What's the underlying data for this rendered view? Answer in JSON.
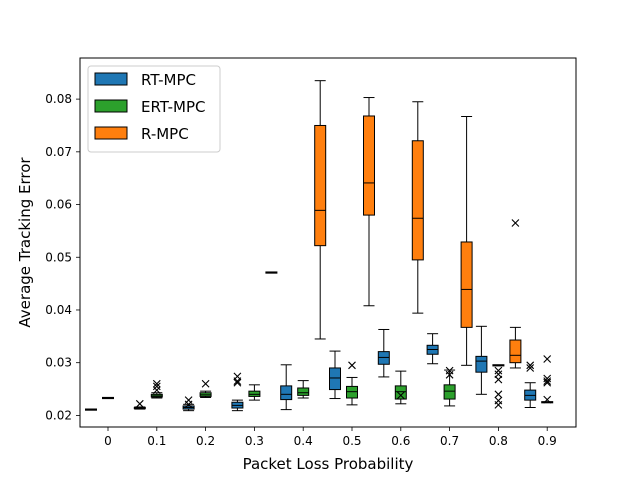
{
  "chart_data": {
    "type": "box",
    "title": "",
    "xlabel": "Packet Loss Probability",
    "ylabel": "Average Tracking Error",
    "x_ticks": [
      "0",
      "0.1",
      "0.2",
      "0.3",
      "0.4",
      "0.5",
      "0.6",
      "0.7",
      "0.8",
      "0.9"
    ],
    "y_ticks": [
      "0.02",
      "0.03",
      "0.04",
      "0.05",
      "0.06",
      "0.07",
      "0.08"
    ],
    "ylim": [
      0.0178,
      0.0878
    ],
    "grid": false,
    "legend": {
      "placement": "top-left"
    },
    "series": [
      {
        "name": "RT-MPC",
        "color": "#1f77b4",
        "boxes": [
          {
            "x": "0",
            "whislo": 0.0211,
            "q1": 0.0211,
            "med": 0.0211,
            "q3": 0.0211,
            "whishi": 0.0211,
            "fliers": []
          },
          {
            "x": "0.1",
            "whislo": 0.0212,
            "q1": 0.0213,
            "med": 0.0214,
            "q3": 0.0215,
            "whishi": 0.0216,
            "fliers": [
              0.0222
            ]
          },
          {
            "x": "0.2",
            "whislo": 0.0209,
            "q1": 0.0212,
            "med": 0.0215,
            "q3": 0.0218,
            "whishi": 0.0221,
            "fliers": [
              0.0229,
              0.0221
            ]
          },
          {
            "x": "0.3",
            "whislo": 0.0209,
            "q1": 0.0214,
            "med": 0.0219,
            "q3": 0.0225,
            "whishi": 0.0229,
            "fliers": [
              0.0274,
              0.0265,
              0.0262
            ]
          },
          {
            "x": "0.4",
            "whislo": 0.0211,
            "q1": 0.023,
            "med": 0.024,
            "q3": 0.0256,
            "whishi": 0.0296,
            "fliers": []
          },
          {
            "x": "0.5",
            "whislo": 0.0232,
            "q1": 0.0249,
            "med": 0.0271,
            "q3": 0.029,
            "whishi": 0.0322,
            "fliers": []
          },
          {
            "x": "0.6",
            "whislo": 0.0273,
            "q1": 0.0297,
            "med": 0.031,
            "q3": 0.0321,
            "whishi": 0.0363,
            "fliers": []
          },
          {
            "x": "0.7",
            "whislo": 0.0298,
            "q1": 0.0316,
            "med": 0.0325,
            "q3": 0.0333,
            "whishi": 0.0355,
            "fliers": []
          },
          {
            "x": "0.8",
            "whislo": 0.024,
            "q1": 0.0282,
            "med": 0.0303,
            "q3": 0.0312,
            "whishi": 0.0369,
            "fliers": []
          },
          {
            "x": "0.9",
            "whislo": 0.0215,
            "q1": 0.0229,
            "med": 0.0238,
            "q3": 0.0248,
            "whishi": 0.0262,
            "fliers": [
              0.0295,
              0.029
            ]
          }
        ]
      },
      {
        "name": "ERT-MPC",
        "color": "#2ca02c",
        "boxes": [
          {
            "x": "0",
            "whislo": 0.0233,
            "q1": 0.0233,
            "med": 0.0233,
            "q3": 0.0233,
            "whishi": 0.0233,
            "fliers": []
          },
          {
            "x": "0.1",
            "whislo": 0.0233,
            "q1": 0.0235,
            "med": 0.0237,
            "q3": 0.024,
            "whishi": 0.0243,
            "fliers": [
              0.026,
              0.0255,
              0.0248
            ]
          },
          {
            "x": "0.2",
            "whislo": 0.0234,
            "q1": 0.0236,
            "med": 0.0239,
            "q3": 0.0243,
            "whishi": 0.0246,
            "fliers": [
              0.026
            ]
          },
          {
            "x": "0.3",
            "whislo": 0.0229,
            "q1": 0.0236,
            "med": 0.024,
            "q3": 0.0246,
            "whishi": 0.0258,
            "fliers": []
          },
          {
            "x": "0.4",
            "whislo": 0.0233,
            "q1": 0.0238,
            "med": 0.0243,
            "q3": 0.0252,
            "whishi": 0.0266,
            "fliers": []
          },
          {
            "x": "0.5",
            "whislo": 0.022,
            "q1": 0.0233,
            "med": 0.0245,
            "q3": 0.0255,
            "whishi": 0.0272,
            "fliers": [
              0.0295
            ]
          },
          {
            "x": "0.6",
            "whislo": 0.0222,
            "q1": 0.0231,
            "med": 0.0245,
            "q3": 0.0256,
            "whishi": 0.0284,
            "fliers": [
              0.0238
            ]
          },
          {
            "x": "0.7",
            "whislo": 0.0218,
            "q1": 0.0231,
            "med": 0.0246,
            "q3": 0.0258,
            "whishi": 0.0286,
            "fliers": [
              0.0285,
              0.0277
            ]
          },
          {
            "x": "0.8",
            "whislo": 0.0295,
            "q1": 0.0295,
            "med": 0.0295,
            "q3": 0.0295,
            "whishi": 0.0295,
            "fliers": [
              0.0285,
              0.0278,
              0.0268,
              0.024,
              0.0228,
              0.022
            ]
          },
          {
            "x": "0.9",
            "whislo": 0.0225,
            "q1": 0.0225,
            "med": 0.0225,
            "q3": 0.0225,
            "whishi": 0.0225,
            "fliers": [
              0.0307,
              0.027,
              0.0265,
              0.0262,
              0.023
            ]
          }
        ]
      },
      {
        "name": "R-MPC",
        "color": "#ff7f0e",
        "boxes": [
          {
            "x": "0.3",
            "whislo": 0.0471,
            "q1": 0.0471,
            "med": 0.0471,
            "q3": 0.0471,
            "whishi": 0.0471,
            "fliers": []
          },
          {
            "x": "0.4",
            "whislo": 0.0345,
            "q1": 0.0522,
            "med": 0.0589,
            "q3": 0.075,
            "whishi": 0.0835,
            "fliers": []
          },
          {
            "x": "0.5",
            "whislo": 0.0408,
            "q1": 0.058,
            "med": 0.0641,
            "q3": 0.0768,
            "whishi": 0.0803,
            "fliers": []
          },
          {
            "x": "0.6",
            "whislo": 0.0394,
            "q1": 0.0495,
            "med": 0.0574,
            "q3": 0.0721,
            "whishi": 0.0795,
            "fliers": []
          },
          {
            "x": "0.7",
            "whislo": 0.0295,
            "q1": 0.0367,
            "med": 0.0439,
            "q3": 0.0529,
            "whishi": 0.0767,
            "fliers": []
          },
          {
            "x": "0.8",
            "whislo": 0.029,
            "q1": 0.03,
            "med": 0.0314,
            "q3": 0.0343,
            "whishi": 0.0367,
            "fliers": [
              0.0565
            ]
          }
        ]
      }
    ]
  }
}
